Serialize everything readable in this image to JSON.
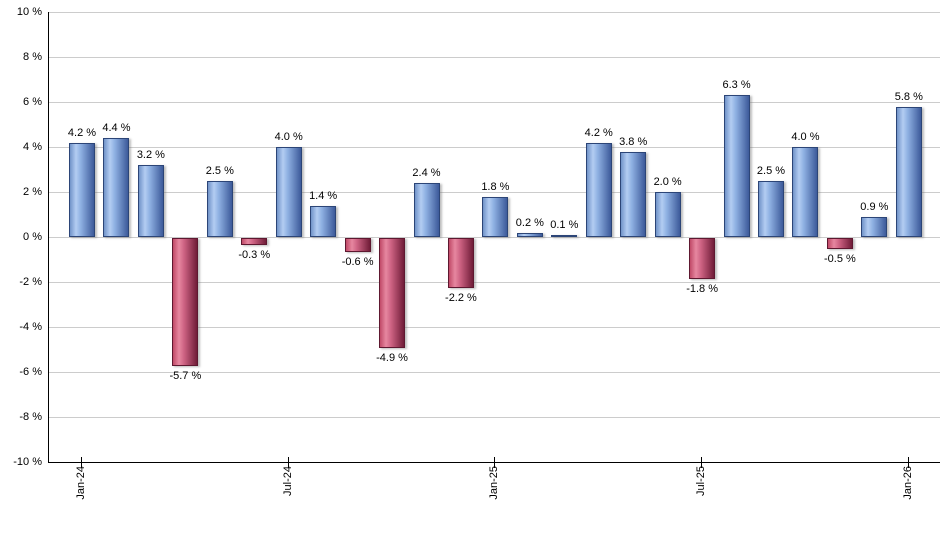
{
  "chart_data": {
    "type": "bar",
    "title": "",
    "xlabel": "",
    "ylabel": "",
    "unit": "%",
    "categories": [
      "Jan-24",
      "Feb-24",
      "Mar-24",
      "Apr-24",
      "May-24",
      "Jun-24",
      "Jul-24",
      "Aug-24",
      "Sep-24",
      "Oct-24",
      "Nov-24",
      "Dec-24",
      "Jan-25",
      "Feb-25",
      "Mar-25",
      "Apr-25",
      "May-25",
      "Jun-25",
      "Jul-25",
      "Aug-25",
      "Sep-25",
      "Oct-25",
      "Nov-25",
      "Dec-25",
      "Jan-26"
    ],
    "values": [
      4.2,
      4.4,
      3.2,
      -5.7,
      2.5,
      -0.3,
      4.0,
      1.4,
      -0.6,
      -4.9,
      2.4,
      -2.2,
      1.8,
      0.2,
      0.1,
      4.2,
      3.8,
      2.0,
      -1.8,
      6.3,
      2.5,
      4.0,
      -0.5,
      0.9,
      5.8
    ],
    "bar_labels": [
      "4.2 %",
      "4.4 %",
      "3.2 %",
      "-5.7 %",
      "2.5 %",
      "-0.3 %",
      "4.0 %",
      "1.4 %",
      "-0.6 %",
      "-4.9 %",
      "2.4 %",
      "-2.2 %",
      "1.8 %",
      "0.2 %",
      "0.1 %",
      "4.2 %",
      "3.8 %",
      "2.0 %",
      "-1.8 %",
      "6.3 %",
      "2.5 %",
      "4.0 %",
      "-0.5 %",
      "0.9 %",
      "5.8 %"
    ],
    "y_axis": {
      "min": -10,
      "max": 10,
      "step": 2,
      "tick_labels": [
        "10 %",
        "8 %",
        "6 %",
        "4 %",
        "2 %",
        "0 %",
        "-2 %",
        "-4 %",
        "-6 %",
        "-8 %",
        "-10 %"
      ]
    },
    "x_ticks": [
      {
        "index": 0,
        "label": "Jan-24"
      },
      {
        "index": 6,
        "label": "Jul-24"
      },
      {
        "index": 12,
        "label": "Jan-25"
      },
      {
        "index": 18,
        "label": "Jul-25"
      },
      {
        "index": 24,
        "label": "Jan-26"
      }
    ],
    "grid": true,
    "legend": false,
    "colors": {
      "positive_edge": "#7193c9",
      "positive_light": "#b3cdf2",
      "positive_mid": "#8eb0e2",
      "positive_dark": "#3d5a9a",
      "positive_border": "#2c4577",
      "negative_edge": "#c14a68",
      "negative_light": "#e687a0",
      "negative_mid": "#cf6484",
      "negative_dark": "#701c38",
      "negative_border": "#5e1830",
      "gridline": "#cccccc",
      "axis": "#000000",
      "label_text": "#000000",
      "background": "#ffffff"
    }
  }
}
